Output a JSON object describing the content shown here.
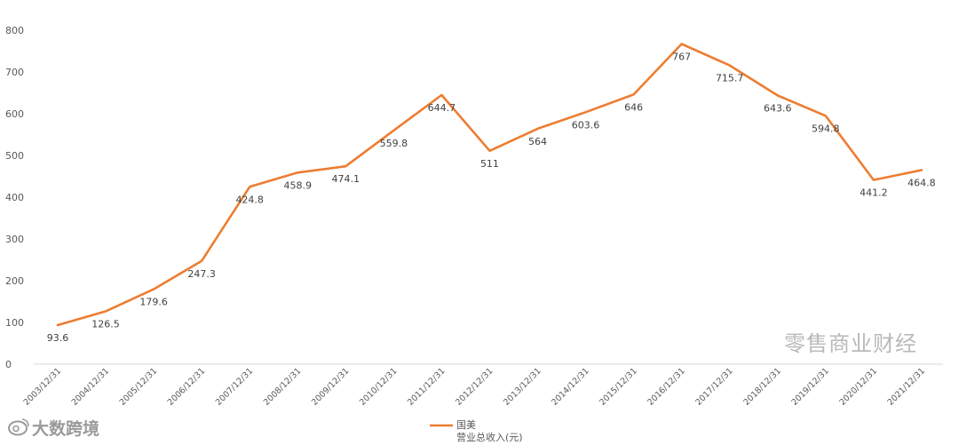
{
  "chart_data": {
    "type": "line",
    "categories": [
      "2003/12/31",
      "2004/12/31",
      "2005/12/31",
      "2006/12/31",
      "2007/12/31",
      "2008/12/31",
      "2009/12/31",
      "2010/12/31",
      "2011/12/31",
      "2012/12/31",
      "2013/12/31",
      "2014/12/31",
      "2015/12/31",
      "2016/12/31",
      "2017/12/31",
      "2018/12/31",
      "2019/12/31",
      "2020/12/31",
      "2021/12/31"
    ],
    "series": [
      {
        "name": "国美\n营业总收入(元)",
        "values": [
          93.6,
          126.5,
          179.6,
          247.3,
          424.8,
          458.9,
          474.1,
          559.8,
          644.7,
          511,
          564,
          603.6,
          646,
          767,
          715.7,
          643.6,
          594.8,
          441.2,
          464.8
        ],
        "data_labels": [
          "93.6",
          "126.5",
          "179.6",
          "247.3",
          "424.8",
          "458.9",
          "474.1",
          "559.8",
          "644.7",
          "511",
          "564",
          "603.6",
          "646",
          "767",
          "715.7",
          "643.6",
          "594.8",
          "441.2",
          "464.8"
        ],
        "color": "#ED7D31"
      }
    ],
    "yticks": [
      "0",
      "100",
      "200",
      "300",
      "400",
      "500",
      "600",
      "700",
      "800"
    ],
    "ylim": [
      0,
      800
    ],
    "grid": false,
    "legend_position": "bottom"
  },
  "legend": {
    "line1": "国美",
    "line2": "营业总收入(元)"
  },
  "watermark": "零售商业财经",
  "brand": {
    "icon": "weibo-icon",
    "text": "大数跨境"
  }
}
